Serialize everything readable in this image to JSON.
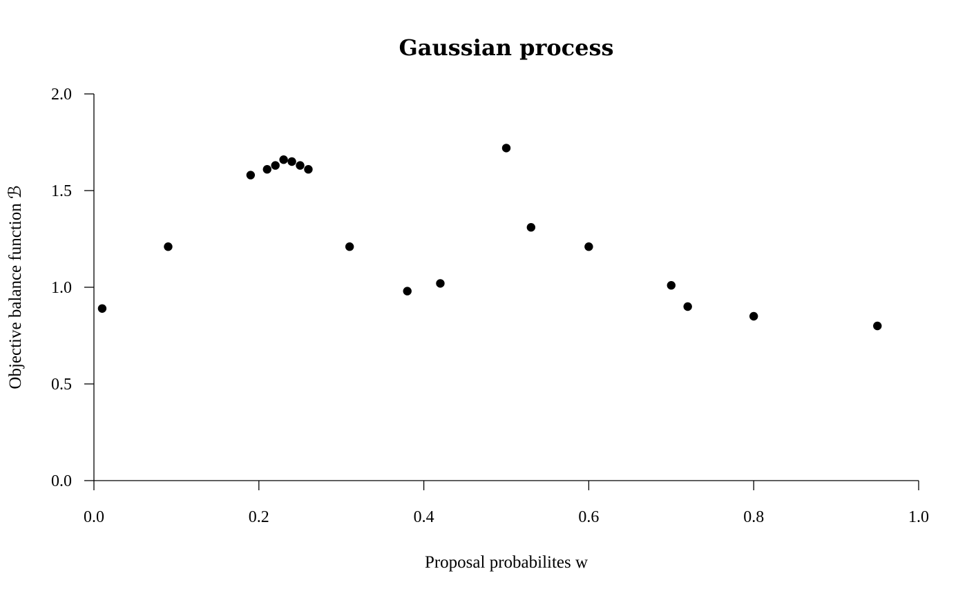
{
  "chart_data": {
    "type": "scatter",
    "title": "Gaussian process",
    "xlabel": "Proposal probabilites w",
    "ylabel": "Objective balance function ℬ",
    "xlim": [
      0,
      1
    ],
    "ylim": [
      0,
      2
    ],
    "x_ticks": [
      0.0,
      0.2,
      0.4,
      0.6,
      0.8,
      1.0
    ],
    "x_tick_labels": [
      "0.0",
      "0.2",
      "0.4",
      "0.6",
      "0.8",
      "1.0"
    ],
    "y_ticks": [
      0.0,
      0.5,
      1.0,
      1.5,
      2.0
    ],
    "y_tick_labels": [
      "0.0",
      "0.5",
      "1.0",
      "1.5",
      "2.0"
    ],
    "grid": false,
    "color": "#000000",
    "points": [
      {
        "x": 0.01,
        "y": 0.89
      },
      {
        "x": 0.09,
        "y": 1.21
      },
      {
        "x": 0.19,
        "y": 1.58
      },
      {
        "x": 0.21,
        "y": 1.61
      },
      {
        "x": 0.22,
        "y": 1.63
      },
      {
        "x": 0.23,
        "y": 1.66
      },
      {
        "x": 0.24,
        "y": 1.65
      },
      {
        "x": 0.25,
        "y": 1.63
      },
      {
        "x": 0.26,
        "y": 1.61
      },
      {
        "x": 0.31,
        "y": 1.21
      },
      {
        "x": 0.38,
        "y": 0.98
      },
      {
        "x": 0.42,
        "y": 1.02
      },
      {
        "x": 0.5,
        "y": 1.72
      },
      {
        "x": 0.53,
        "y": 1.31
      },
      {
        "x": 0.6,
        "y": 1.21
      },
      {
        "x": 0.7,
        "y": 1.01
      },
      {
        "x": 0.72,
        "y": 0.9
      },
      {
        "x": 0.8,
        "y": 0.85
      },
      {
        "x": 0.95,
        "y": 0.8
      }
    ]
  }
}
